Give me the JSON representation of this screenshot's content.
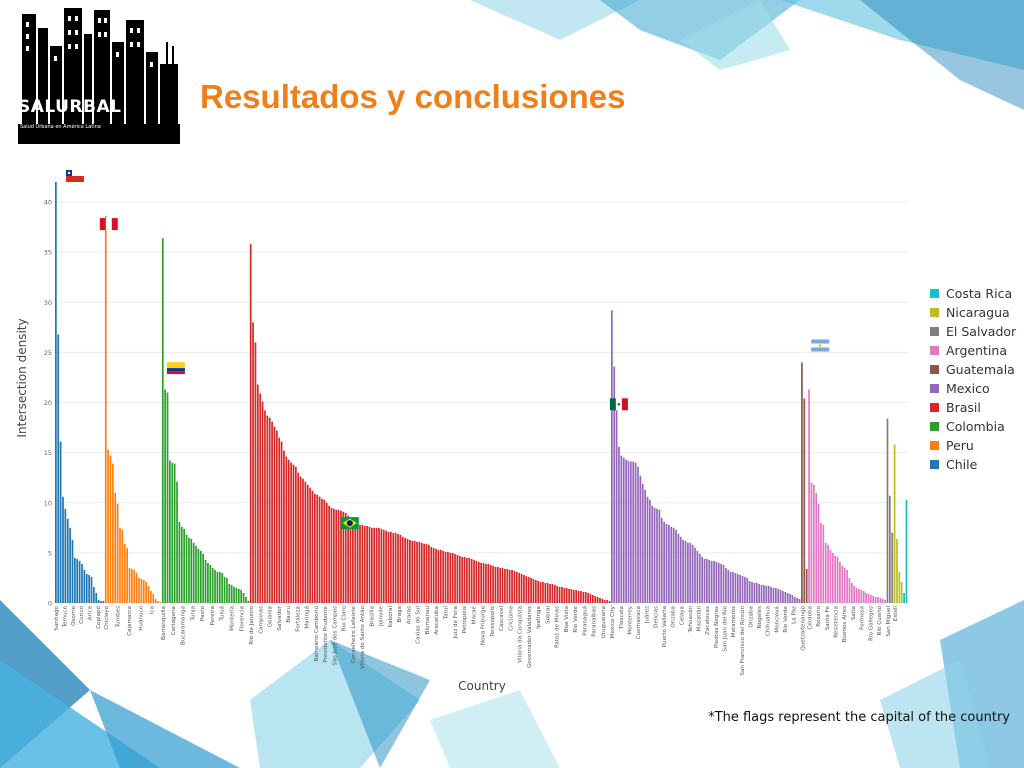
{
  "slide": {
    "title": "Resultados y conclusiones",
    "footnote": "*The flags represent the capital of the country",
    "logo": {
      "word": "SALURBAL",
      "tagline": "Salud Urbana en América Latina"
    }
  },
  "colors": {
    "title": "#f07f1a",
    "Chile": "#1f77b4",
    "Peru": "#ff7f0e",
    "Colombia": "#2ca02c",
    "Brasil": "#d62728",
    "Mexico": "#9467bd",
    "Guatemala": "#8c564b",
    "Argentina": "#e377c2",
    "El Salvador": "#7f7f7f",
    "Nicaragua": "#bcbd22",
    "Costa Rica": "#17becf"
  },
  "chart_data": {
    "type": "bar",
    "xlabel": "Country",
    "ylabel": "Intersection density",
    "ylim": [
      0,
      42
    ],
    "yticks": [
      0,
      5,
      10,
      15,
      20,
      25,
      30,
      35,
      40
    ],
    "grid": true,
    "legend_position": "right",
    "legend": [
      "Costa Rica",
      "Nicaragua",
      "El Salvador",
      "Argentina",
      "Guatemala",
      "Mexico",
      "Brasil",
      "Colombia",
      "Peru",
      "Chile"
    ],
    "series": [
      {
        "name": "Chile",
        "bars": 21,
        "values": [
          42.0,
          26.8,
          16.1,
          10.6,
          9.4,
          8.4,
          7.5,
          6.3,
          4.5,
          4.4,
          4.2,
          3.9,
          3.3,
          2.9,
          2.8,
          2.6,
          1.6,
          1.0,
          0.3,
          0.2,
          0.2
        ],
        "labels": [
          "Santiago",
          "Temuco",
          "Osorno",
          "Curico",
          "Arica",
          "Copiapó"
        ]
      },
      {
        "name": "Peru",
        "bars": 24,
        "values": [
          38.6,
          15.3,
          14.7,
          13.9,
          11.0,
          9.9,
          7.5,
          7.3,
          5.9,
          5.5,
          3.5,
          3.4,
          3.3,
          3.0,
          2.5,
          2.4,
          2.3,
          2.1,
          1.7,
          1.2,
          0.9,
          0.4,
          0.2,
          0.1
        ],
        "labels": [
          "Chiclayo",
          "Tumbes",
          "Cajamarca",
          "Huánuco",
          "Ica"
        ]
      },
      {
        "name": "Colombia",
        "bars": 37,
        "values": [
          36.4,
          21.3,
          21.0,
          14.2,
          14.0,
          13.9,
          12.1,
          8.1,
          7.6,
          7.4,
          6.8,
          6.5,
          6.4,
          6.0,
          5.7,
          5.4,
          5.2,
          4.9,
          4.3,
          4.0,
          3.8,
          3.5,
          3.3,
          3.1,
          3.1,
          3.0,
          2.6,
          2.5,
          1.9,
          1.8,
          1.6,
          1.5,
          1.4,
          1.3,
          1.0,
          0.6,
          0.2
        ],
        "labels": [
          "Barranquilla",
          "Cartagena",
          "Bucaramanga",
          "Tunja",
          "Pasto",
          "Pereira",
          "Tuluá",
          "Montería",
          "Florencia"
        ]
      },
      {
        "name": "Brasil",
        "bars": 152,
        "values": [
          35.8,
          28.0,
          26.0,
          21.8,
          20.9,
          20.1,
          19.2,
          18.7,
          18.5,
          18.1,
          17.6,
          17.2,
          16.5,
          16.1,
          15.2,
          14.6,
          14.3,
          14.0,
          13.8,
          13.6,
          13.0,
          12.6,
          12.4,
          12.1,
          11.8,
          11.5,
          11.2,
          10.9,
          10.8,
          10.6,
          10.4,
          10.3,
          10.0,
          9.7,
          9.5,
          9.4,
          9.3,
          9.3,
          9.2,
          9.1,
          9.0,
          8.7,
          8.2,
          7.9,
          7.9,
          7.8,
          7.8,
          7.8,
          7.7,
          7.7,
          7.6,
          7.5,
          7.5,
          7.5,
          7.5,
          7.4,
          7.3,
          7.2,
          7.1,
          7.1,
          7.0,
          7.0,
          6.9,
          6.8,
          6.6,
          6.5,
          6.4,
          6.3,
          6.2,
          6.2,
          6.1,
          6.1,
          6.0,
          5.9,
          5.9,
          5.8,
          5.6,
          5.5,
          5.4,
          5.3,
          5.3,
          5.2,
          5.1,
          5.1,
          5.0,
          5.0,
          4.9,
          4.8,
          4.7,
          4.6,
          4.6,
          4.5,
          4.5,
          4.4,
          4.3,
          4.2,
          4.1,
          4.0,
          4.0,
          3.9,
          3.9,
          3.8,
          3.7,
          3.6,
          3.6,
          3.5,
          3.5,
          3.4,
          3.4,
          3.3,
          3.3,
          3.2,
          3.1,
          3.0,
          2.9,
          2.8,
          2.7,
          2.6,
          2.5,
          2.4,
          2.3,
          2.2,
          2.1,
          2.1,
          2.0,
          2.0,
          1.9,
          1.9,
          1.8,
          1.7,
          1.6,
          1.6,
          1.5,
          1.5,
          1.4,
          1.4,
          1.3,
          1.3,
          1.2,
          1.2,
          1.1,
          1.1,
          1.0,
          0.9,
          0.8,
          0.7,
          0.6,
          0.5,
          0.4,
          0.3,
          0.3,
          0.2
        ],
        "labels": [
          "Rio de Janeiro",
          "Campinas",
          "Goiania",
          "Salvador",
          "Bauru",
          "Fortaleza",
          "Maringá",
          "Balneário Camboriú",
          "Presidente Prudente",
          "São José dos Campos",
          "Rio Claro",
          "Conselheiro Lafaiete",
          "Vitória de Santo Antão",
          "Brasília",
          "Joinvile",
          "Itaboraí",
          "Braga",
          "Araras",
          "Caxias do Sul",
          "Blumenau",
          "Aracatuba",
          "Tatuí",
          "Juiz de Fora",
          "Petrópolis",
          "Macaé",
          "Nova Friburgo",
          "Teresópolis",
          "Cascavel",
          "Criciúma",
          "Vitória da Conquista",
          "Governador Valadares",
          "Ipatinga",
          "Sobral",
          "Patos de Minas",
          "Boa Vista",
          "Rio Verde",
          "Paranaguá",
          "Paranaíbas",
          "Uruguaiana"
        ]
      },
      {
        "name": "Mexico",
        "bars": 80,
        "values": [
          29.2,
          23.6,
          20.0,
          15.6,
          14.7,
          14.5,
          14.3,
          14.2,
          14.1,
          14.1,
          14.0,
          13.6,
          12.7,
          11.9,
          11.3,
          10.6,
          10.3,
          9.7,
          9.5,
          9.4,
          9.3,
          8.5,
          8.1,
          7.9,
          7.8,
          7.6,
          7.5,
          7.3,
          6.9,
          6.6,
          6.3,
          6.2,
          6.0,
          6.0,
          5.8,
          5.5,
          5.2,
          4.9,
          4.6,
          4.4,
          4.4,
          4.3,
          4.2,
          4.2,
          4.1,
          4.0,
          3.9,
          3.8,
          3.5,
          3.3,
          3.1,
          3.1,
          3.0,
          2.9,
          2.8,
          2.7,
          2.6,
          2.5,
          2.2,
          2.1,
          2.0,
          2.0,
          1.9,
          1.8,
          1.8,
          1.7,
          1.7,
          1.6,
          1.5,
          1.5,
          1.4,
          1.3,
          1.2,
          1.1,
          1.0,
          0.9,
          0.8,
          0.6,
          0.5,
          0.4
        ],
        "labels": [
          "Mexico City",
          "Tlaxcala",
          "Monterrey",
          "Cuernavaca",
          "Juárez",
          "Delicias",
          "Puerto Vallarta",
          "Orizaba",
          "Celaya",
          "Tehuacán",
          "Mazatlán",
          "Zacatecas",
          "Piedras Negras",
          "San Juan del Río",
          "Matamoros",
          "San Francisco del Rincón",
          "Orizaba",
          "Nogales",
          "Chihuahua",
          "Monclova",
          "Río Verde",
          "La Paz"
        ]
      },
      {
        "name": "Guatemala",
        "bars": 3,
        "values": [
          24.0,
          20.4,
          3.4
        ],
        "labels": [
          "Quetzaltenango"
        ]
      },
      {
        "name": "Argentina",
        "bars": 33,
        "values": [
          21.3,
          12.0,
          11.8,
          11.0,
          9.9,
          8.0,
          7.8,
          6.0,
          5.8,
          5.3,
          5.0,
          4.7,
          4.6,
          4.1,
          3.7,
          3.5,
          3.3,
          2.5,
          2.0,
          1.7,
          1.5,
          1.4,
          1.3,
          1.2,
          1.0,
          0.9,
          0.8,
          0.7,
          0.6,
          0.6,
          0.5,
          0.4,
          0.3
        ],
        "labels": [
          "Córdoba",
          "Rosario",
          "Santa Fe",
          "Resistencia",
          "Buenos Aires",
          "Salta",
          "Formosa",
          "Río Gallegos",
          "Río Cuarto"
        ]
      },
      {
        "name": "El Salvador",
        "bars": 3,
        "values": [
          18.4,
          10.7,
          7.0
        ],
        "labels": [
          "San Miguel"
        ]
      },
      {
        "name": "Nicaragua",
        "bars": 4,
        "values": [
          15.8,
          6.4,
          3.1,
          2.1
        ],
        "labels": [
          "Estelí"
        ]
      },
      {
        "name": "Costa Rica",
        "bars": 2,
        "values": [
          1.0,
          10.3
        ],
        "labels": []
      }
    ],
    "annotations": [
      {
        "country": "Chile",
        "flag": "chile-flag"
      },
      {
        "country": "Peru",
        "flag": "peru-flag"
      },
      {
        "country": "Colombia",
        "flag": "colombia-flag"
      },
      {
        "country": "Brasil",
        "flag": "brazil-flag"
      },
      {
        "country": "Mexico",
        "flag": "mexico-flag"
      },
      {
        "country": "Argentina",
        "flag": "argentina-flag"
      }
    ]
  }
}
